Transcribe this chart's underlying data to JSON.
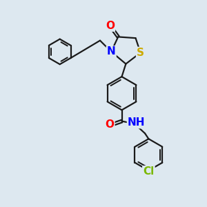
{
  "bg_color": "#dde8f0",
  "bond_color": "#1a1a1a",
  "bond_width": 1.6,
  "atom_colors": {
    "O": "#ff0000",
    "N": "#0000ff",
    "S": "#ccaa00",
    "Cl": "#7ab800",
    "C": "#1a1a1a",
    "H": "#444444"
  },
  "font_size": 10,
  "fig_size": [
    3.0,
    3.0
  ],
  "dpi": 100
}
